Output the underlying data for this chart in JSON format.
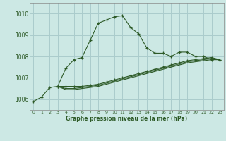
{
  "title": "Graphe pression niveau de la mer (hPa)",
  "bg_color": "#cce8e4",
  "grid_color": "#aacccc",
  "line_color": "#2d5a27",
  "xlim": [
    -0.5,
    23.5
  ],
  "ylim": [
    1005.5,
    1010.5
  ],
  "yticks": [
    1006,
    1007,
    1008,
    1009,
    1010
  ],
  "xticks": [
    0,
    1,
    2,
    3,
    4,
    5,
    6,
    7,
    8,
    9,
    10,
    11,
    12,
    13,
    14,
    15,
    16,
    17,
    18,
    19,
    20,
    21,
    22,
    23
  ],
  "series1_x": [
    0,
    1,
    2,
    3,
    4,
    5,
    6,
    7,
    8,
    9,
    10,
    11,
    12,
    13,
    14,
    15,
    16,
    17,
    18,
    19,
    20,
    21,
    22,
    23
  ],
  "series1_y": [
    1005.9,
    1006.1,
    1006.55,
    1006.6,
    1007.45,
    1007.85,
    1007.95,
    1008.75,
    1009.55,
    1009.7,
    1009.85,
    1009.9,
    1009.35,
    1009.05,
    1008.4,
    1008.15,
    1008.15,
    1008.0,
    1008.2,
    1008.2,
    1008.0,
    1008.0,
    1007.85,
    1007.85
  ],
  "series2_x": [
    3,
    4,
    5,
    6,
    7,
    8,
    9,
    10,
    11,
    12,
    13,
    14,
    15,
    16,
    17,
    18,
    19,
    20,
    21,
    22,
    23
  ],
  "series2_y": [
    1006.6,
    1006.6,
    1006.6,
    1006.6,
    1006.65,
    1006.7,
    1006.8,
    1006.9,
    1007.0,
    1007.1,
    1007.2,
    1007.3,
    1007.4,
    1007.5,
    1007.6,
    1007.7,
    1007.8,
    1007.85,
    1007.9,
    1007.95,
    1007.85
  ],
  "series3_x": [
    3,
    4,
    5,
    6,
    7,
    8,
    9,
    10,
    11,
    12,
    13,
    14,
    15,
    16,
    17,
    18,
    19,
    20,
    21,
    22,
    23
  ],
  "series3_y": [
    1006.6,
    1006.5,
    1006.5,
    1006.55,
    1006.6,
    1006.65,
    1006.75,
    1006.85,
    1006.95,
    1007.05,
    1007.15,
    1007.25,
    1007.35,
    1007.45,
    1007.55,
    1007.65,
    1007.75,
    1007.8,
    1007.85,
    1007.9,
    1007.85
  ],
  "series4_x": [
    3,
    4,
    5,
    6,
    7,
    8,
    9,
    10,
    11,
    12,
    13,
    14,
    15,
    16,
    17,
    18,
    19,
    20,
    21,
    22,
    23
  ],
  "series4_y": [
    1006.6,
    1006.45,
    1006.45,
    1006.5,
    1006.55,
    1006.6,
    1006.7,
    1006.8,
    1006.9,
    1007.0,
    1007.1,
    1007.2,
    1007.3,
    1007.4,
    1007.5,
    1007.6,
    1007.7,
    1007.75,
    1007.8,
    1007.85,
    1007.85
  ]
}
